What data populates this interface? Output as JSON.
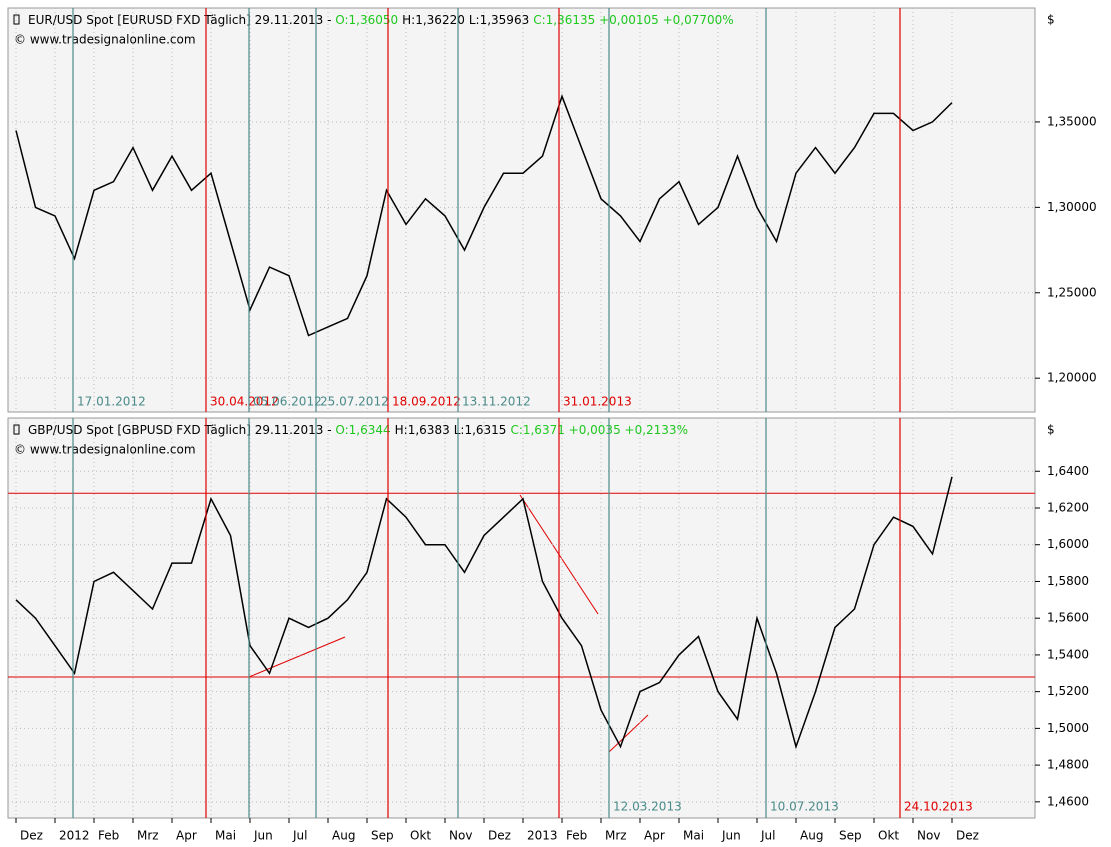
{
  "x_axis": {
    "categories": [
      "Dez",
      null,
      "2012",
      null,
      "Feb",
      null,
      "Mrz",
      null,
      "Apr",
      null,
      "Mai",
      null,
      "Jun",
      null,
      "Jul",
      null,
      "Aug",
      null,
      "Sep",
      null,
      "Okt",
      null,
      "Nov",
      null,
      "Dez",
      null,
      "2013",
      null,
      "Feb",
      null,
      "Mrz",
      null,
      "Apr",
      null,
      "Mai",
      null,
      "Jun",
      null,
      "Jul",
      null,
      "Aug",
      null,
      "Sep",
      null,
      "Okt",
      null,
      "Nov",
      null,
      "Dez"
    ]
  },
  "markers": [
    {
      "label": "17.01.2012",
      "color": "#4a8a8a"
    },
    {
      "label": "30.04.2012",
      "color": "#e00000"
    },
    {
      "label": "05.06.2012",
      "color": "#4a8a8a"
    },
    {
      "label": "25.07.2012",
      "color": "#4a8a8a"
    },
    {
      "label": "18.09.2012",
      "color": "#e00000"
    },
    {
      "label": "13.11.2012",
      "color": "#4a8a8a"
    },
    {
      "label": "31.01.2013",
      "color": "#e00000"
    },
    {
      "label": "12.03.2013",
      "color": "#4a8a8a"
    },
    {
      "label": "10.07.2013",
      "color": "#4a8a8a"
    },
    {
      "label": "24.10.2013",
      "color": "#e00000"
    }
  ],
  "chart_data": [
    {
      "type": "line",
      "title": "EUR/USD Spot [EURUSD FXD  Täglich] 29.11.2013 - ",
      "open": "O:1,36050",
      "high": "H:1,36220",
      "low": "L:1,35963",
      "close": "C:1,36135 +0,00105 +0,07700%",
      "source": "© www.tradesignalonline.com",
      "currency": "$",
      "color": "#000000",
      "values": [
        1.345,
        1.3,
        1.295,
        1.27,
        1.31,
        1.315,
        1.335,
        1.31,
        1.33,
        1.31,
        1.32,
        1.28,
        1.24,
        1.265,
        1.26,
        1.225,
        1.23,
        1.235,
        1.26,
        1.31,
        1.29,
        1.305,
        1.295,
        1.275,
        1.3,
        1.32,
        1.32,
        1.33,
        1.365,
        1.335,
        1.305,
        1.295,
        1.28,
        1.305,
        1.315,
        1.29,
        1.3,
        1.33,
        1.3,
        1.28,
        1.32,
        1.335,
        1.32,
        1.335,
        1.355,
        1.355,
        1.345,
        1.35,
        1.3613
      ],
      "ylim": [
        1.1802,
        1.4167
      ],
      "yticks": [
        {
          "value": 1.2,
          "label": "1,20000"
        },
        {
          "value": 1.25,
          "label": "1,25000"
        },
        {
          "value": 1.3,
          "label": "1,30000"
        },
        {
          "value": 1.35,
          "label": "1,35000"
        }
      ],
      "grid": true,
      "hlines": []
    },
    {
      "type": "line",
      "title": "GBP/USD Spot [GBPUSD FXD  Täglich] 29.11.2013 - ",
      "open": "O:1,6344",
      "high": "H:1,6383",
      "low": "L:1,6315",
      "close": "C:1,6371 +0,0035 +0,2133%",
      "source": "© www.tradesignalonline.com",
      "currency": "$",
      "color": "#000000",
      "values": [
        1.57,
        1.56,
        1.545,
        1.53,
        1.58,
        1.585,
        1.575,
        1.565,
        1.59,
        1.59,
        1.625,
        1.605,
        1.545,
        1.53,
        1.56,
        1.555,
        1.56,
        1.57,
        1.585,
        1.625,
        1.615,
        1.6,
        1.6,
        1.585,
        1.605,
        1.615,
        1.625,
        1.58,
        1.56,
        1.545,
        1.51,
        1.49,
        1.52,
        1.525,
        1.54,
        1.55,
        1.52,
        1.505,
        1.56,
        1.53,
        1.49,
        1.52,
        1.555,
        1.565,
        1.6,
        1.615,
        1.61,
        1.595,
        1.637
      ],
      "ylim": [
        1.4512,
        1.669
      ],
      "yticks": [
        {
          "value": 1.46,
          "label": "1,4600"
        },
        {
          "value": 1.48,
          "label": "1,4800"
        },
        {
          "value": 1.5,
          "label": "1,5000"
        },
        {
          "value": 1.52,
          "label": "1,5200"
        },
        {
          "value": 1.54,
          "label": "1,5400"
        },
        {
          "value": 1.56,
          "label": "1,5600"
        },
        {
          "value": 1.58,
          "label": "1,5800"
        },
        {
          "value": 1.6,
          "label": "1,6000"
        },
        {
          "value": 1.62,
          "label": "1,6200"
        },
        {
          "value": 1.64,
          "label": "1,6400"
        }
      ],
      "grid": true,
      "hlines": [
        1.628,
        1.528
      ]
    }
  ]
}
